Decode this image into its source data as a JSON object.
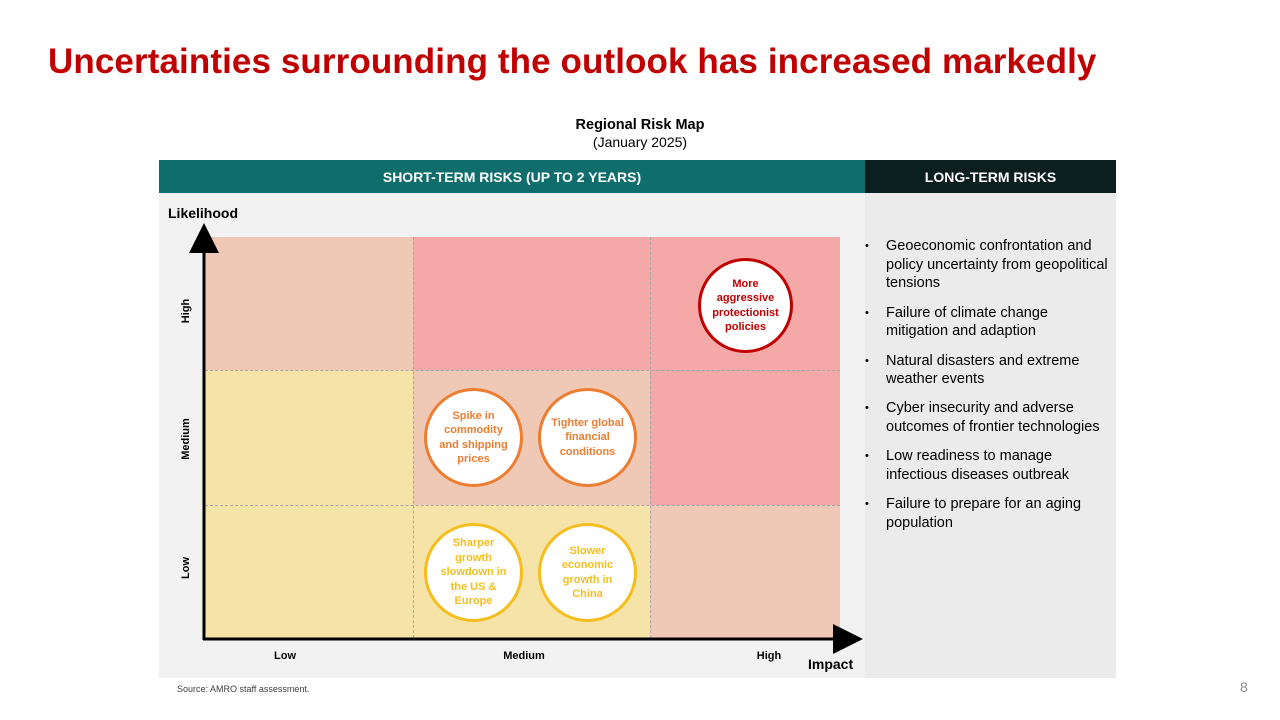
{
  "slide": {
    "title": "Uncertainties surrounding the outlook has increased markedly",
    "page_number": "8",
    "source": "Source: AMRO staff assessment."
  },
  "map": {
    "title": "Regional Risk Map",
    "subtitle": "(January 2025)",
    "short_term_header": "SHORT-TERM RISKS (UP TO 2 YEARS)",
    "long_term_header": "LONG-TERM RISKS",
    "y_axis_label": "Likelihood",
    "x_axis_label": "Impact",
    "y_ticks": [
      "Low",
      "Medium",
      "High"
    ],
    "x_ticks": [
      "Low",
      "Medium",
      "High"
    ],
    "colors": {
      "red_zone": "#f4a8a8",
      "peach_zone": "#f0c9b6",
      "yellow_zone": "#f6e3a8",
      "red_circle": "#c00000",
      "orange_circle": "#ed7d31",
      "yellow_circle": "#f5be1e"
    },
    "grid_colors": [
      [
        "peach",
        "red",
        "red"
      ],
      [
        "yellow",
        "peach",
        "red"
      ],
      [
        "yellow",
        "yellow",
        "peach"
      ]
    ],
    "risks": [
      {
        "label": "More aggressive protectionist policies",
        "likelihood": "High",
        "impact": "High",
        "color": "red"
      },
      {
        "label": "Spike in commodity and shipping prices",
        "likelihood": "Medium",
        "impact": "Medium",
        "color": "orange"
      },
      {
        "label": "Tighter global financial conditions",
        "likelihood": "Medium",
        "impact": "Medium",
        "color": "orange"
      },
      {
        "label": "Sharper growth slowdown in the US & Europe",
        "likelihood": "Low",
        "impact": "Medium",
        "color": "yellow"
      },
      {
        "label": "Slower economic growth in China",
        "likelihood": "Low",
        "impact": "Medium",
        "color": "yellow"
      }
    ]
  },
  "long_term_risks": [
    "Geoeconomic confrontation and policy uncertainty from geopolitical tensions",
    "Failure of climate change mitigation and adaption",
    "Natural disasters and extreme weather events",
    "Cyber insecurity and adverse outcomes of frontier technologies",
    "Low readiness to manage infectious diseases outbreak",
    "Failure to prepare for an aging population"
  ]
}
